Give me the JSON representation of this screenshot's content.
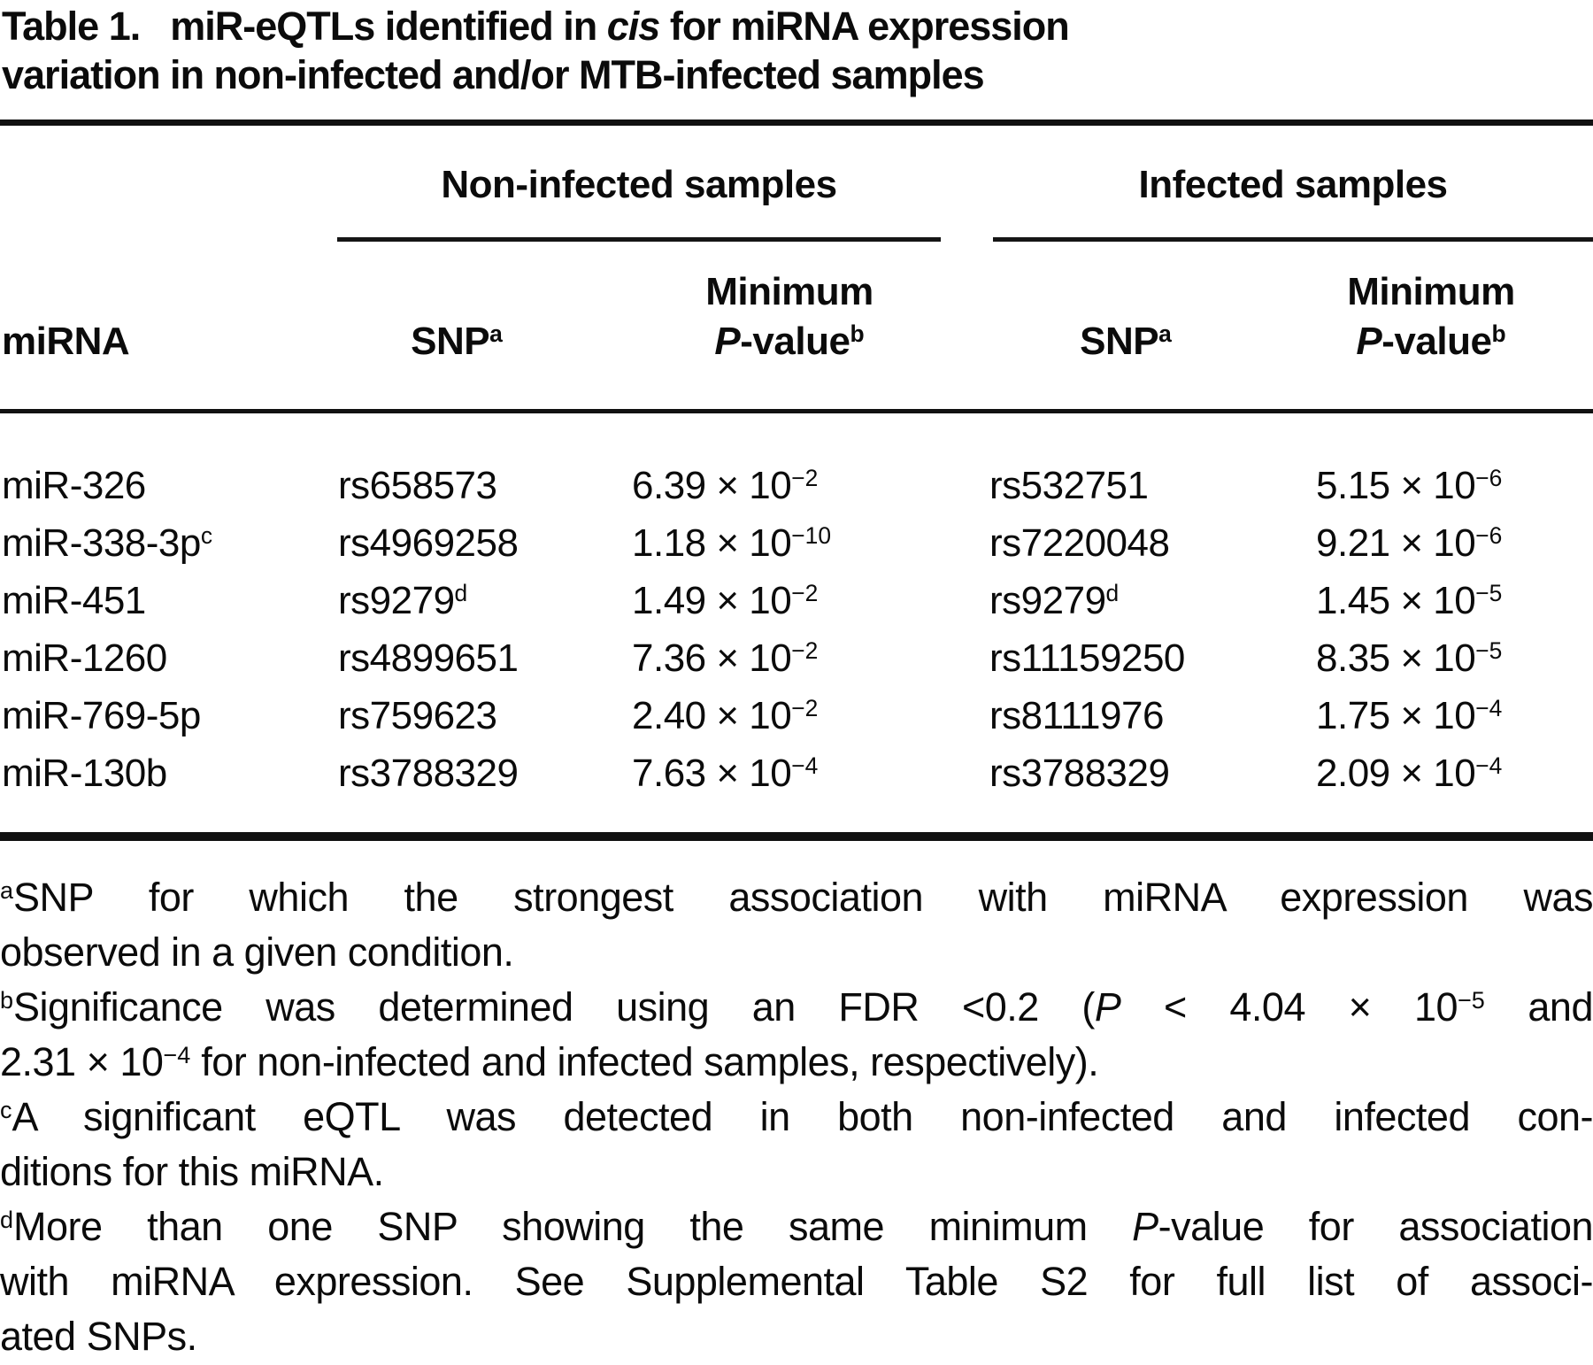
{
  "title": {
    "label": "Table 1.",
    "line1_a": "miR-eQTLs identified in ",
    "cis": "cis",
    "line1_b": " for miRNA expression",
    "line2": "variation in non-infected and/or MTB-infected samples"
  },
  "header": {
    "group1": "Non-infected samples",
    "group2": "Infected samples",
    "col_mirna": "miRNA",
    "col_snp": "SNP",
    "col_snp_sup": "a",
    "col_min": "Minimum",
    "col_p_italic": "P",
    "col_p_rest": "-value",
    "col_p_sup": "b"
  },
  "table": {
    "rows": [
      {
        "mirna": "miR-326",
        "mirna_sup": "",
        "ni_snp": "rs658573",
        "ni_snp_sup": "",
        "ni_p_m": "6.39 × 10",
        "ni_p_e": "−2",
        "inf_snp": "rs532751",
        "inf_snp_sup": "",
        "inf_p_m": "5.15 × 10",
        "inf_p_e": "−6"
      },
      {
        "mirna": "miR-338-3p",
        "mirna_sup": "c",
        "ni_snp": "rs4969258",
        "ni_snp_sup": "",
        "ni_p_m": "1.18 × 10",
        "ni_p_e": "−10",
        "inf_snp": "rs7220048",
        "inf_snp_sup": "",
        "inf_p_m": "9.21 × 10",
        "inf_p_e": "−6"
      },
      {
        "mirna": "miR-451",
        "mirna_sup": "",
        "ni_snp": "rs9279",
        "ni_snp_sup": "d",
        "ni_p_m": "1.49 × 10",
        "ni_p_e": "−2",
        "inf_snp": "rs9279",
        "inf_snp_sup": "d",
        "inf_p_m": "1.45 × 10",
        "inf_p_e": "−5"
      },
      {
        "mirna": "miR-1260",
        "mirna_sup": "",
        "ni_snp": "rs4899651",
        "ni_snp_sup": "",
        "ni_p_m": "7.36 × 10",
        "ni_p_e": "−2",
        "inf_snp": "rs11159250",
        "inf_snp_sup": "",
        "inf_p_m": "8.35 × 10",
        "inf_p_e": "−5"
      },
      {
        "mirna": "miR-769-5p",
        "mirna_sup": "",
        "ni_snp": "rs759623",
        "ni_snp_sup": "",
        "ni_p_m": "2.40 × 10",
        "ni_p_e": "−2",
        "inf_snp": "rs8111976",
        "inf_snp_sup": "",
        "inf_p_m": "1.75 × 10",
        "inf_p_e": "−4"
      },
      {
        "mirna": "miR-130b",
        "mirna_sup": "",
        "ni_snp": "rs3788329",
        "ni_snp_sup": "",
        "ni_p_m": "7.63 × 10",
        "ni_p_e": "−4",
        "inf_snp": "rs3788329",
        "inf_snp_sup": "",
        "inf_p_m": "2.09 × 10",
        "inf_p_e": "−4"
      }
    ]
  },
  "footnotes": [
    {
      "marker": "a",
      "lines": [
        {
          "justify": true,
          "segs": [
            {
              "t": "SNP for which the strongest association with miRNA expression was"
            }
          ]
        },
        {
          "justify": false,
          "segs": [
            {
              "t": "observed in a given condition."
            }
          ]
        }
      ]
    },
    {
      "marker": "b",
      "lines": [
        {
          "justify": true,
          "segs": [
            {
              "t": "Significance was determined using an FDR <0.2 ("
            },
            {
              "t": "P",
              "s": "i"
            },
            {
              "t": " < 4.04 × 10"
            },
            {
              "t": "−5",
              "s": "sup"
            },
            {
              "t": " and"
            }
          ]
        },
        {
          "justify": false,
          "segs": [
            {
              "t": "2.31 × 10"
            },
            {
              "t": "−4",
              "s": "sup"
            },
            {
              "t": " for non-infected and infected samples, respectively)."
            }
          ]
        }
      ]
    },
    {
      "marker": "c",
      "lines": [
        {
          "justify": true,
          "segs": [
            {
              "t": "A significant eQTL was detected in both non-infected and infected con-"
            }
          ]
        },
        {
          "justify": false,
          "segs": [
            {
              "t": "ditions for this miRNA."
            }
          ]
        }
      ]
    },
    {
      "marker": "d",
      "lines": [
        {
          "justify": true,
          "segs": [
            {
              "t": "More than one SNP showing the same minimum "
            },
            {
              "t": "P",
              "s": "i"
            },
            {
              "t": "-value for association"
            }
          ]
        },
        {
          "justify": true,
          "segs": [
            {
              "t": "with miRNA expression. See Supplemental Table S2 for full list of associ-"
            }
          ]
        },
        {
          "justify": false,
          "segs": [
            {
              "t": "ated SNPs."
            }
          ]
        }
      ]
    }
  ]
}
